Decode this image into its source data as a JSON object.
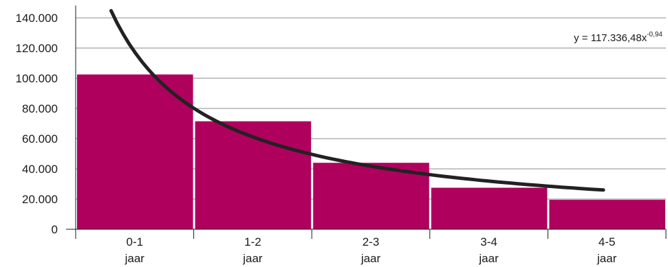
{
  "chart_data": {
    "type": "bar",
    "categories": [
      {
        "line1": "0-1",
        "line2": "jaar"
      },
      {
        "line1": "1-2",
        "line2": "jaar"
      },
      {
        "line1": "2-3",
        "line2": "jaar"
      },
      {
        "line1": "3-4",
        "line2": "jaar"
      },
      {
        "line1": "4-5",
        "line2": "jaar"
      }
    ],
    "values": [
      102500,
      71500,
      44000,
      27500,
      19500
    ],
    "ylim": [
      0,
      140000
    ],
    "yticks": [
      0,
      20000,
      40000,
      60000,
      80000,
      100000,
      120000,
      140000
    ],
    "ytick_labels": [
      "0",
      "20.000",
      "40.000",
      "60.000",
      "80.000",
      "100.000",
      "120.000",
      "140.000"
    ],
    "grid": true,
    "bar_color": "#b0005e",
    "trendline": {
      "type": "power",
      "coefficient": 117336.48,
      "exponent": -0.94,
      "color": "#222222",
      "label_base": "y = 117.336,48x",
      "label_exponent": "-0,94"
    }
  }
}
